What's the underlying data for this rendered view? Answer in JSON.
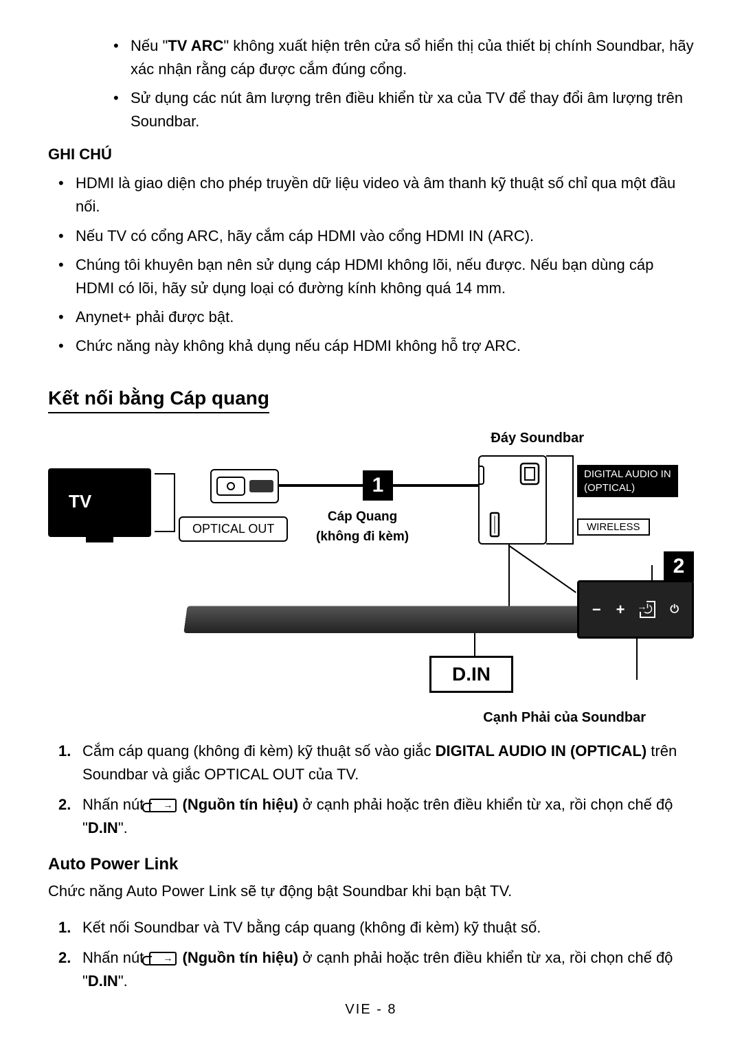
{
  "top_bullets": [
    {
      "prefix": "Nếu \"",
      "bold": "TV ARC",
      "suffix": "\" không xuất hiện trên cửa sổ hiển thị của thiết bị chính Soundbar, hãy xác nhận rằng cáp được cắm đúng cổng."
    },
    {
      "text": "Sử dụng các nút âm lượng trên điều khiển từ xa của TV để thay đổi âm lượng trên Soundbar."
    }
  ],
  "note_title": "GHI CHÚ",
  "notes": [
    "HDMI là giao diện cho phép truyền dữ liệu video và âm thanh kỹ thuật số chỉ qua một đầu nối.",
    "Nếu TV có cổng ARC, hãy cắm cáp HDMI vào cổng HDMI IN (ARC).",
    "Chúng tôi khuyên bạn nên sử dụng cáp HDMI không lõi, nếu được. Nếu bạn dùng cáp HDMI có lõi, hãy sử dụng loại có đường kính không quá 14 mm.",
    "Anynet+ phải được bật.",
    "Chức năng này không khả dụng nếu cáp HDMI không hỗ trợ ARC."
  ],
  "section_heading": "Kết nối bằng Cáp quang",
  "diagram": {
    "top_label": "Đáy Soundbar",
    "tv_label": "TV",
    "optical_out": "OPTICAL OUT",
    "badge1": "1",
    "cable_label_1": "Cáp Quang",
    "cable_label_2": "(không đi kèm)",
    "digital_audio_1": "DIGITAL AUDIO IN",
    "digital_audio_2": "(OPTICAL)",
    "wireless": "WIRELESS",
    "badge2": "2",
    "din": "D.IN",
    "bottom_label": "Cạnh Phải của Soundbar"
  },
  "steps_main": [
    {
      "num": "1.",
      "parts": [
        {
          "t": "Cắm cáp quang (không đi kèm) kỹ thuật số vào giắc "
        },
        {
          "t": "DIGITAL AUDIO IN (OPTICAL)",
          "b": true
        },
        {
          "t": " trên Soundbar và giắc OPTICAL OUT của TV."
        }
      ]
    },
    {
      "num": "2.",
      "parts": [
        {
          "t": "Nhấn nút "
        },
        {
          "icon": true
        },
        {
          "t": " (Nguồn tín hiệu)",
          "b": true
        },
        {
          "t": " ở cạnh phải hoặc trên điều khiển từ xa, rồi chọn chế độ \""
        },
        {
          "t": "D.IN",
          "b": true
        },
        {
          "t": "\"."
        }
      ]
    }
  ],
  "subsection_heading": "Auto Power Link",
  "subsection_body": "Chức năng Auto Power Link sẽ tự động bật Soundbar khi bạn bật TV.",
  "steps_sub": [
    {
      "num": "1.",
      "parts": [
        {
          "t": "Kết nối Soundbar và TV bằng cáp quang (không đi kèm) kỹ thuật số."
        }
      ]
    },
    {
      "num": "2.",
      "parts": [
        {
          "t": "Nhấn nút "
        },
        {
          "icon": true
        },
        {
          "t": " (Nguồn tín hiệu)",
          "b": true
        },
        {
          "t": " ở cạnh phải hoặc trên điều khiển từ xa, rồi chọn chế độ \""
        },
        {
          "t": "D.IN",
          "b": true
        },
        {
          "t": "\"."
        }
      ]
    }
  ],
  "footer": "VIE - 8"
}
